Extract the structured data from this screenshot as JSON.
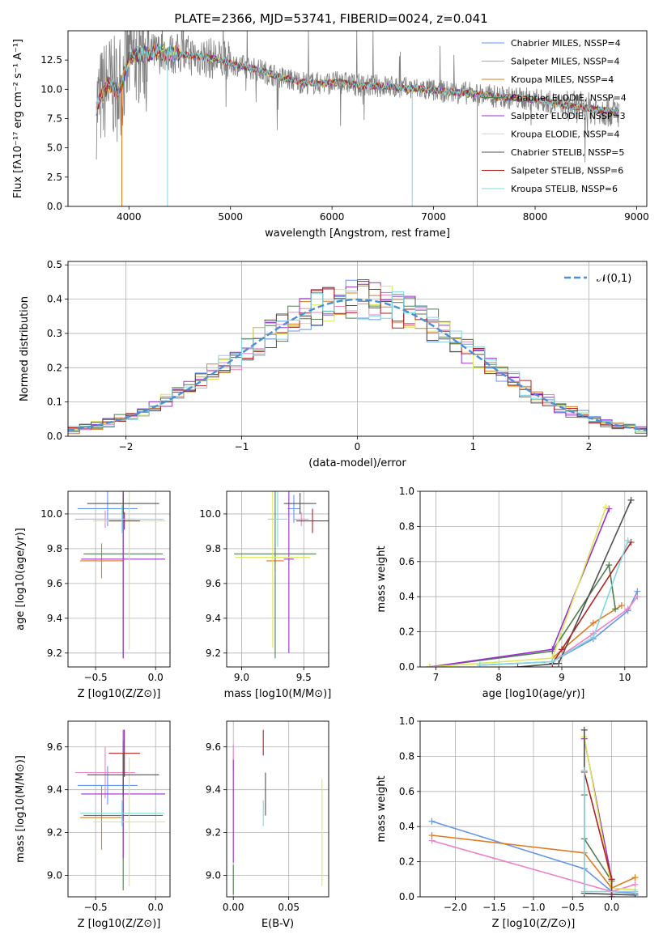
{
  "figure_title": "PLATE=2366, MJD=53741, FIBERID=0024, z=0.041",
  "colors": {
    "Chabrier MILES": "#6495ed",
    "Salpeter MILES": "#ee82c8",
    "Kroupa MILES": "#e07b1f",
    "Chabrier ELODIE": "#4f7f4f",
    "Salpeter ELODIE": "#9932cc",
    "Kroupa ELODIE": "#dbe85a",
    "Chabrier STELIB": "#505050",
    "Salpeter STELIB": "#b22222",
    "Kroupa STELIB": "#7fd8e0",
    "data": "#808080",
    "gaussian": "#4a8fd8",
    "grid": "#b0b0b0"
  },
  "chart_data": [
    {
      "id": "spectrum",
      "type": "line",
      "title": "PLATE=2366, MJD=53741, FIBERID=0024, z=0.041",
      "xlabel": "wavelength [Angstrom, rest frame]",
      "ylabel": "Flux [fλ10⁻¹⁷ erg cm⁻² s⁻¹ A⁻¹]",
      "xlim": [
        3400,
        9100
      ],
      "ylim": [
        0,
        15
      ],
      "xticks": [
        4000,
        5000,
        6000,
        7000,
        8000,
        9000
      ],
      "yticks": [
        0.0,
        2.5,
        5.0,
        7.5,
        10.0,
        12.5
      ],
      "grid": false,
      "legend_position": "top-right",
      "legend": [
        "Chabrier MILES, NSSP=4",
        "Salpeter MILES, NSSP=4",
        "Kroupa MILES, NSSP=4",
        "Chabrier ELODIE, NSSP=4",
        "Salpeter ELODIE, NSSP=3",
        "Kroupa ELODIE, NSSP=4",
        "Chabrier STELIB, NSSP=5",
        "Salpeter STELIB, NSSP=6",
        "Kroupa STELIB, NSSP=6"
      ],
      "model_continuum": {
        "x": [
          3680,
          3800,
          3900,
          4000,
          4100,
          4300,
          4500,
          4700,
          4900,
          5100,
          5300,
          5500,
          5700,
          5900,
          6100,
          6300,
          6500,
          6700,
          6900,
          7100,
          7300,
          7500,
          7700,
          7900,
          8100,
          8300,
          8500,
          8700,
          8830
        ],
        "y": [
          8.5,
          10.5,
          9.8,
          12.6,
          13.0,
          13.1,
          13.0,
          12.8,
          12.5,
          12.0,
          11.6,
          11.0,
          10.6,
          10.5,
          10.6,
          10.3,
          10.3,
          10.1,
          10.0,
          9.8,
          9.7,
          9.5,
          9.3,
          9.2,
          9.0,
          8.6,
          8.4,
          8.2,
          8.0
        ]
      },
      "spectrum_dips": [
        {
          "x": 3930,
          "y": 0.0
        },
        {
          "x": 4380,
          "y": 0.0
        },
        {
          "x": 6790,
          "y": 0.0
        },
        {
          "x": 7430,
          "y": 0.0
        }
      ]
    },
    {
      "id": "residual_hist",
      "type": "bar",
      "xlabel": "(data-model)/error",
      "ylabel": "Normed distribution",
      "xlim": [
        -2.5,
        2.5
      ],
      "ylim": [
        0,
        0.51
      ],
      "xticks": [
        -2,
        -1,
        0,
        1,
        2
      ],
      "yticks": [
        0.0,
        0.1,
        0.2,
        0.3,
        0.4,
        0.5
      ],
      "grid": true,
      "legend_position": "top-right",
      "legend": [
        "𝒩(0,1)"
      ],
      "bin_width": 0.1
    },
    {
      "id": "age_vs_Z",
      "type": "scatter",
      "xlabel": "Z [log10(Z/Z⊙)]",
      "ylabel": "age  [log10(age/yr)]",
      "xlim": [
        -0.73,
        0.12
      ],
      "ylim": [
        9.12,
        10.13
      ],
      "xticks": [
        -0.5,
        0.0
      ],
      "yticks": [
        9.2,
        9.4,
        9.6,
        9.8,
        10.0
      ],
      "grid": true,
      "errorbars": [
        {
          "series": "Chabrier MILES",
          "x": -0.4,
          "xerr": 0.25,
          "y": 10.03,
          "yerr": 0.1
        },
        {
          "series": "Salpeter MILES",
          "x": -0.42,
          "xerr": 0.25,
          "y": 9.97,
          "yerr": 0.05
        },
        {
          "series": "Kroupa MILES",
          "x": -0.45,
          "xerr": 0.18,
          "y": 9.73,
          "yerr": 0.1
        },
        {
          "series": "Chabrier ELODIE",
          "x": -0.27,
          "xerr": 0.33,
          "y": 9.77,
          "yerr": 0.6
        },
        {
          "series": "Salpeter ELODIE",
          "x": -0.27,
          "xerr": 0.35,
          "y": 9.74,
          "yerr": 0.57
        },
        {
          "series": "Kroupa ELODIE",
          "x": -0.22,
          "xerr": 0.3,
          "y": 9.96,
          "yerr": 0.74
        },
        {
          "series": "Chabrier STELIB",
          "x": -0.27,
          "xerr": 0.3,
          "y": 10.06,
          "yerr": 0.06
        },
        {
          "series": "Salpeter STELIB",
          "x": -0.26,
          "xerr": 0.13,
          "y": 9.96,
          "yerr": 0.05
        },
        {
          "series": "Kroupa STELIB",
          "x": -0.28,
          "xerr": 0.35,
          "y": 9.97,
          "yerr": 0.08
        }
      ]
    },
    {
      "id": "age_vs_mass",
      "type": "scatter",
      "xlabel": "mass [log10(M/M⊙)]",
      "ylabel": "",
      "xlim": [
        8.88,
        9.7
      ],
      "ylim": [
        9.12,
        10.13
      ],
      "xticks": [
        9.0,
        9.5
      ],
      "yticks": [
        9.2,
        9.4,
        9.6,
        9.8,
        10.0
      ],
      "grid": true,
      "errorbars": [
        {
          "series": "Chabrier MILES",
          "x": 9.42,
          "xerr": 0.05,
          "y": 10.03,
          "yerr": 0.08
        },
        {
          "series": "Salpeter MILES",
          "x": 9.48,
          "xerr": 0.06,
          "y": 9.97,
          "yerr": 0.04
        },
        {
          "series": "Kroupa MILES",
          "x": 9.27,
          "xerr": 0.07,
          "y": 9.73,
          "yerr": 0.06
        },
        {
          "series": "Chabrier ELODIE",
          "x": 9.27,
          "xerr": 0.33,
          "y": 9.77,
          "yerr": 0.6
        },
        {
          "series": "Salpeter ELODIE",
          "x": 9.38,
          "xerr": 0.04,
          "y": 9.74,
          "yerr": 0.54
        },
        {
          "series": "Kroupa ELODIE",
          "x": 9.25,
          "xerr": 0.3,
          "y": 9.75,
          "yerr": 0.52
        },
        {
          "series": "Chabrier STELIB",
          "x": 9.47,
          "xerr": 0.13,
          "y": 10.06,
          "yerr": 0.06
        },
        {
          "series": "Salpeter STELIB",
          "x": 9.57,
          "xerr": 0.13,
          "y": 9.96,
          "yerr": 0.07
        },
        {
          "series": "Kroupa STELIB",
          "x": 9.29,
          "xerr": 0.08,
          "y": 9.97,
          "yerr": 0.16
        }
      ]
    },
    {
      "id": "massweight_vs_age",
      "type": "line",
      "xlabel": "age  [log10(age/yr)]",
      "ylabel": "mass weight",
      "xlim": [
        6.75,
        10.35
      ],
      "ylim": [
        0,
        1.0
      ],
      "xticks": [
        7,
        8,
        9,
        10
      ],
      "yticks": [
        0.0,
        0.2,
        0.4,
        0.6,
        0.8,
        1.0
      ],
      "grid": true,
      "series": [
        {
          "name": "Chabrier MILES",
          "x": [
            7.7,
            8.85,
            9.5,
            10.05,
            10.2
          ],
          "y": [
            0.01,
            0.03,
            0.16,
            0.32,
            0.43
          ]
        },
        {
          "name": "Salpeter MILES",
          "x": [
            8.85,
            9.5,
            10.05,
            10.2
          ],
          "y": [
            0.03,
            0.19,
            0.33,
            0.4
          ]
        },
        {
          "name": "Kroupa MILES",
          "x": [
            8.85,
            9.5,
            9.95
          ],
          "y": [
            0.05,
            0.25,
            0.35
          ]
        },
        {
          "name": "Chabrier ELODIE",
          "x": [
            6.9,
            8.85,
            9.75,
            9.85
          ],
          "y": [
            0.0,
            0.09,
            0.58,
            0.33
          ]
        },
        {
          "name": "Salpeter ELODIE",
          "x": [
            6.9,
            8.85,
            9.75
          ],
          "y": [
            0.0,
            0.1,
            0.9
          ]
        },
        {
          "name": "Kroupa ELODIE",
          "x": [
            6.9,
            8.85,
            9.7
          ],
          "y": [
            0.0,
            0.05,
            0.91
          ]
        },
        {
          "name": "Chabrier STELIB",
          "x": [
            8.3,
            8.95,
            10.1
          ],
          "y": [
            0.0,
            0.02,
            0.95
          ]
        },
        {
          "name": "Salpeter STELIB",
          "x": [
            8.85,
            9.0,
            10.1
          ],
          "y": [
            0.02,
            0.1,
            0.71
          ]
        },
        {
          "name": "Kroupa STELIB",
          "x": [
            7.7,
            8.85,
            9.5,
            10.05
          ],
          "y": [
            0.01,
            0.03,
            0.17,
            0.72
          ]
        }
      ]
    },
    {
      "id": "mass_vs_Z",
      "type": "scatter",
      "xlabel": "Z [log10(Z/Z⊙)]",
      "ylabel": "mass [log10(M/M⊙)]",
      "xlim": [
        -0.73,
        0.12
      ],
      "ylim": [
        8.9,
        9.72
      ],
      "xticks": [
        -0.5,
        0.0
      ],
      "yticks": [
        9.0,
        9.2,
        9.4,
        9.6
      ],
      "grid": true,
      "errorbars": [
        {
          "series": "Chabrier MILES",
          "x": -0.4,
          "xerr": 0.25,
          "y": 9.42,
          "yerr": 0.09
        },
        {
          "series": "Salpeter MILES",
          "x": -0.42,
          "xerr": 0.25,
          "y": 9.48,
          "yerr": 0.12
        },
        {
          "series": "Kroupa MILES",
          "x": -0.45,
          "xerr": 0.18,
          "y": 9.27,
          "yerr": 0.15
        },
        {
          "series": "Chabrier ELODIE",
          "x": -0.27,
          "xerr": 0.33,
          "y": 9.28,
          "yerr": 0.35
        },
        {
          "series": "Salpeter ELODIE",
          "x": -0.27,
          "xerr": 0.35,
          "y": 9.38,
          "yerr": 0.3
        },
        {
          "series": "Kroupa ELODIE",
          "x": -0.22,
          "xerr": 0.3,
          "y": 9.25,
          "yerr": 0.3
        },
        {
          "series": "Chabrier STELIB",
          "x": -0.27,
          "xerr": 0.3,
          "y": 9.47,
          "yerr": 0.1
        },
        {
          "series": "Salpeter STELIB",
          "x": -0.26,
          "xerr": 0.13,
          "y": 9.57,
          "yerr": 0.11
        },
        {
          "series": "Kroupa STELIB",
          "x": -0.28,
          "xerr": 0.35,
          "y": 9.29,
          "yerr": 0.06
        }
      ]
    },
    {
      "id": "mass_vs_EBV",
      "type": "scatter",
      "xlabel": "E(B-V)",
      "ylabel": "",
      "xlim": [
        -0.006,
        0.086
      ],
      "ylim": [
        8.9,
        9.72
      ],
      "xticks": [
        0.0,
        0.05
      ],
      "yticks": [
        9.0,
        9.2,
        9.4,
        9.6
      ],
      "grid": true,
      "errorbars": [
        {
          "series": "Salpeter MILES",
          "x": 0.0,
          "xerr": 0,
          "y": 9.55,
          "yerr": 0.06
        },
        {
          "series": "Salpeter ELODIE",
          "x": 0.0,
          "xerr": 0,
          "y": 9.3,
          "yerr": 0.24
        },
        {
          "series": "Chabrier ELODIE",
          "x": 0.0,
          "xerr": 0,
          "y": 8.98,
          "yerr": 0.07
        },
        {
          "series": "Salpeter STELIB",
          "x": 0.027,
          "xerr": 0,
          "y": 9.62,
          "yerr": 0.06
        },
        {
          "series": "Kroupa STELIB",
          "x": 0.027,
          "xerr": 0,
          "y": 9.29,
          "yerr": 0.06
        },
        {
          "series": "Chabrier STELIB",
          "x": 0.029,
          "xerr": 0,
          "y": 9.38,
          "yerr": 0.1
        },
        {
          "series": "Kroupa ELODIE",
          "x": 0.08,
          "xerr": 0,
          "y": 9.2,
          "yerr": 0.25
        }
      ]
    },
    {
      "id": "massweight_vs_Z",
      "type": "line",
      "xlabel": "Z [log10(Z/Z⊙)]",
      "ylabel": "mass weight",
      "xlim": [
        -2.45,
        0.45
      ],
      "ylim": [
        0,
        1.0
      ],
      "xticks": [
        -2.0,
        -1.5,
        -1.0,
        -0.5,
        0.0
      ],
      "yticks": [
        0.0,
        0.2,
        0.4,
        0.6,
        0.8,
        1.0
      ],
      "grid": true,
      "series": [
        {
          "name": "Chabrier MILES",
          "x": [
            -2.3,
            -0.35,
            0.0,
            0.3
          ],
          "y": [
            0.43,
            0.16,
            0.03,
            0.02
          ]
        },
        {
          "name": "Salpeter MILES",
          "x": [
            -2.3,
            0.0,
            0.3
          ],
          "y": [
            0.32,
            0.03,
            0.07
          ]
        },
        {
          "name": "Kroupa MILES",
          "x": [
            -2.3,
            -0.35,
            0.0,
            0.3
          ],
          "y": [
            0.35,
            0.25,
            0.05,
            0.11
          ]
        },
        {
          "name": "Chabrier ELODIE",
          "x": [
            -0.35,
            -0.35,
            0.0
          ],
          "y": [
            0.58,
            0.33,
            0.09
          ]
        },
        {
          "name": "Salpeter ELODIE",
          "x": [
            -0.35,
            0.0,
            0.0
          ],
          "y": [
            0.9,
            0.1,
            0.0
          ]
        },
        {
          "name": "Kroupa ELODIE",
          "x": [
            -0.35,
            0.0,
            0.3
          ],
          "y": [
            0.91,
            0.05,
            0.04
          ]
        },
        {
          "name": "Chabrier STELIB",
          "x": [
            -0.35,
            -0.35,
            0.3
          ],
          "y": [
            0.95,
            0.02,
            0.01
          ]
        },
        {
          "name": "Salpeter STELIB",
          "x": [
            -0.35,
            0.0,
            0.0
          ],
          "y": [
            0.71,
            0.1,
            0.0
          ]
        },
        {
          "name": "Kroupa STELIB",
          "x": [
            -0.35,
            -0.35,
            0.3
          ],
          "y": [
            0.72,
            0.03,
            0.03
          ]
        }
      ]
    }
  ]
}
